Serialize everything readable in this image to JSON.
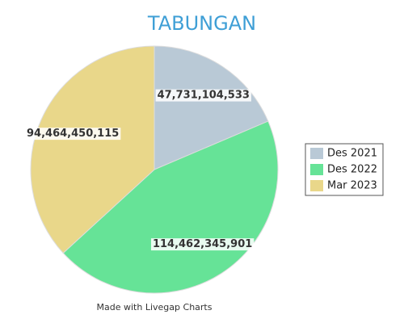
{
  "chart_data": {
    "type": "pie",
    "title": "TABUNGAN",
    "categories": [
      "Des 2021",
      "Des 2022",
      "Mar 2023"
    ],
    "values": [
      47731104533,
      114462345901,
      94464450115
    ],
    "value_labels": [
      "47,731,104,533",
      "114,462,345,901",
      "94,464,450,115"
    ],
    "colors": [
      "#b9c9d6",
      "#66e397",
      "#e9d78a"
    ],
    "legend": "right",
    "footnote": "Made with Livegap Charts"
  }
}
